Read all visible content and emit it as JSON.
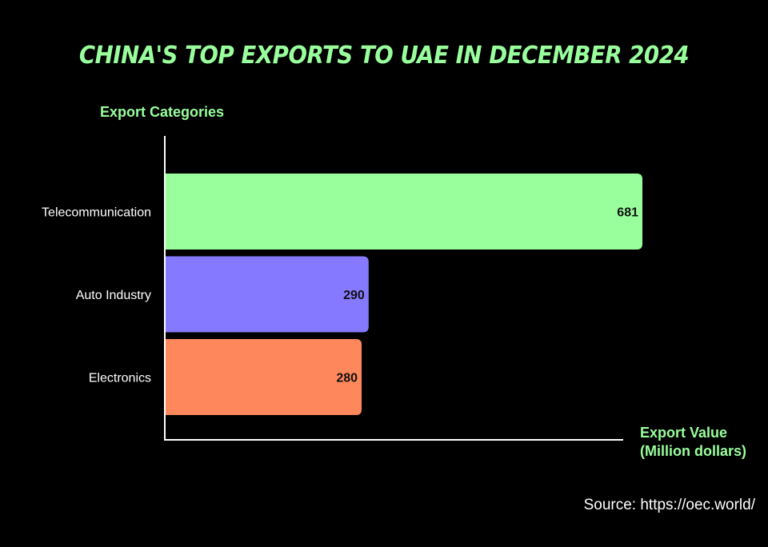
{
  "chart_data": {
    "type": "bar",
    "orientation": "horizontal",
    "title": "CHINA'S TOP EXPORTS TO UAE IN DECEMBER 2024",
    "ylabel": "Export Categories",
    "xlabel_line1": "Export Value",
    "xlabel_line2": "(Million dollars)",
    "categories": [
      "Telecommunication",
      "Auto Industry",
      "Electronics"
    ],
    "values": [
      681,
      290,
      280
    ],
    "colors": [
      "#99ff9d",
      "#8479ff",
      "#ff875c"
    ],
    "xlim": [
      0,
      681
    ],
    "grid": false,
    "legend": "none",
    "source": "Source: https://oec.world/"
  }
}
